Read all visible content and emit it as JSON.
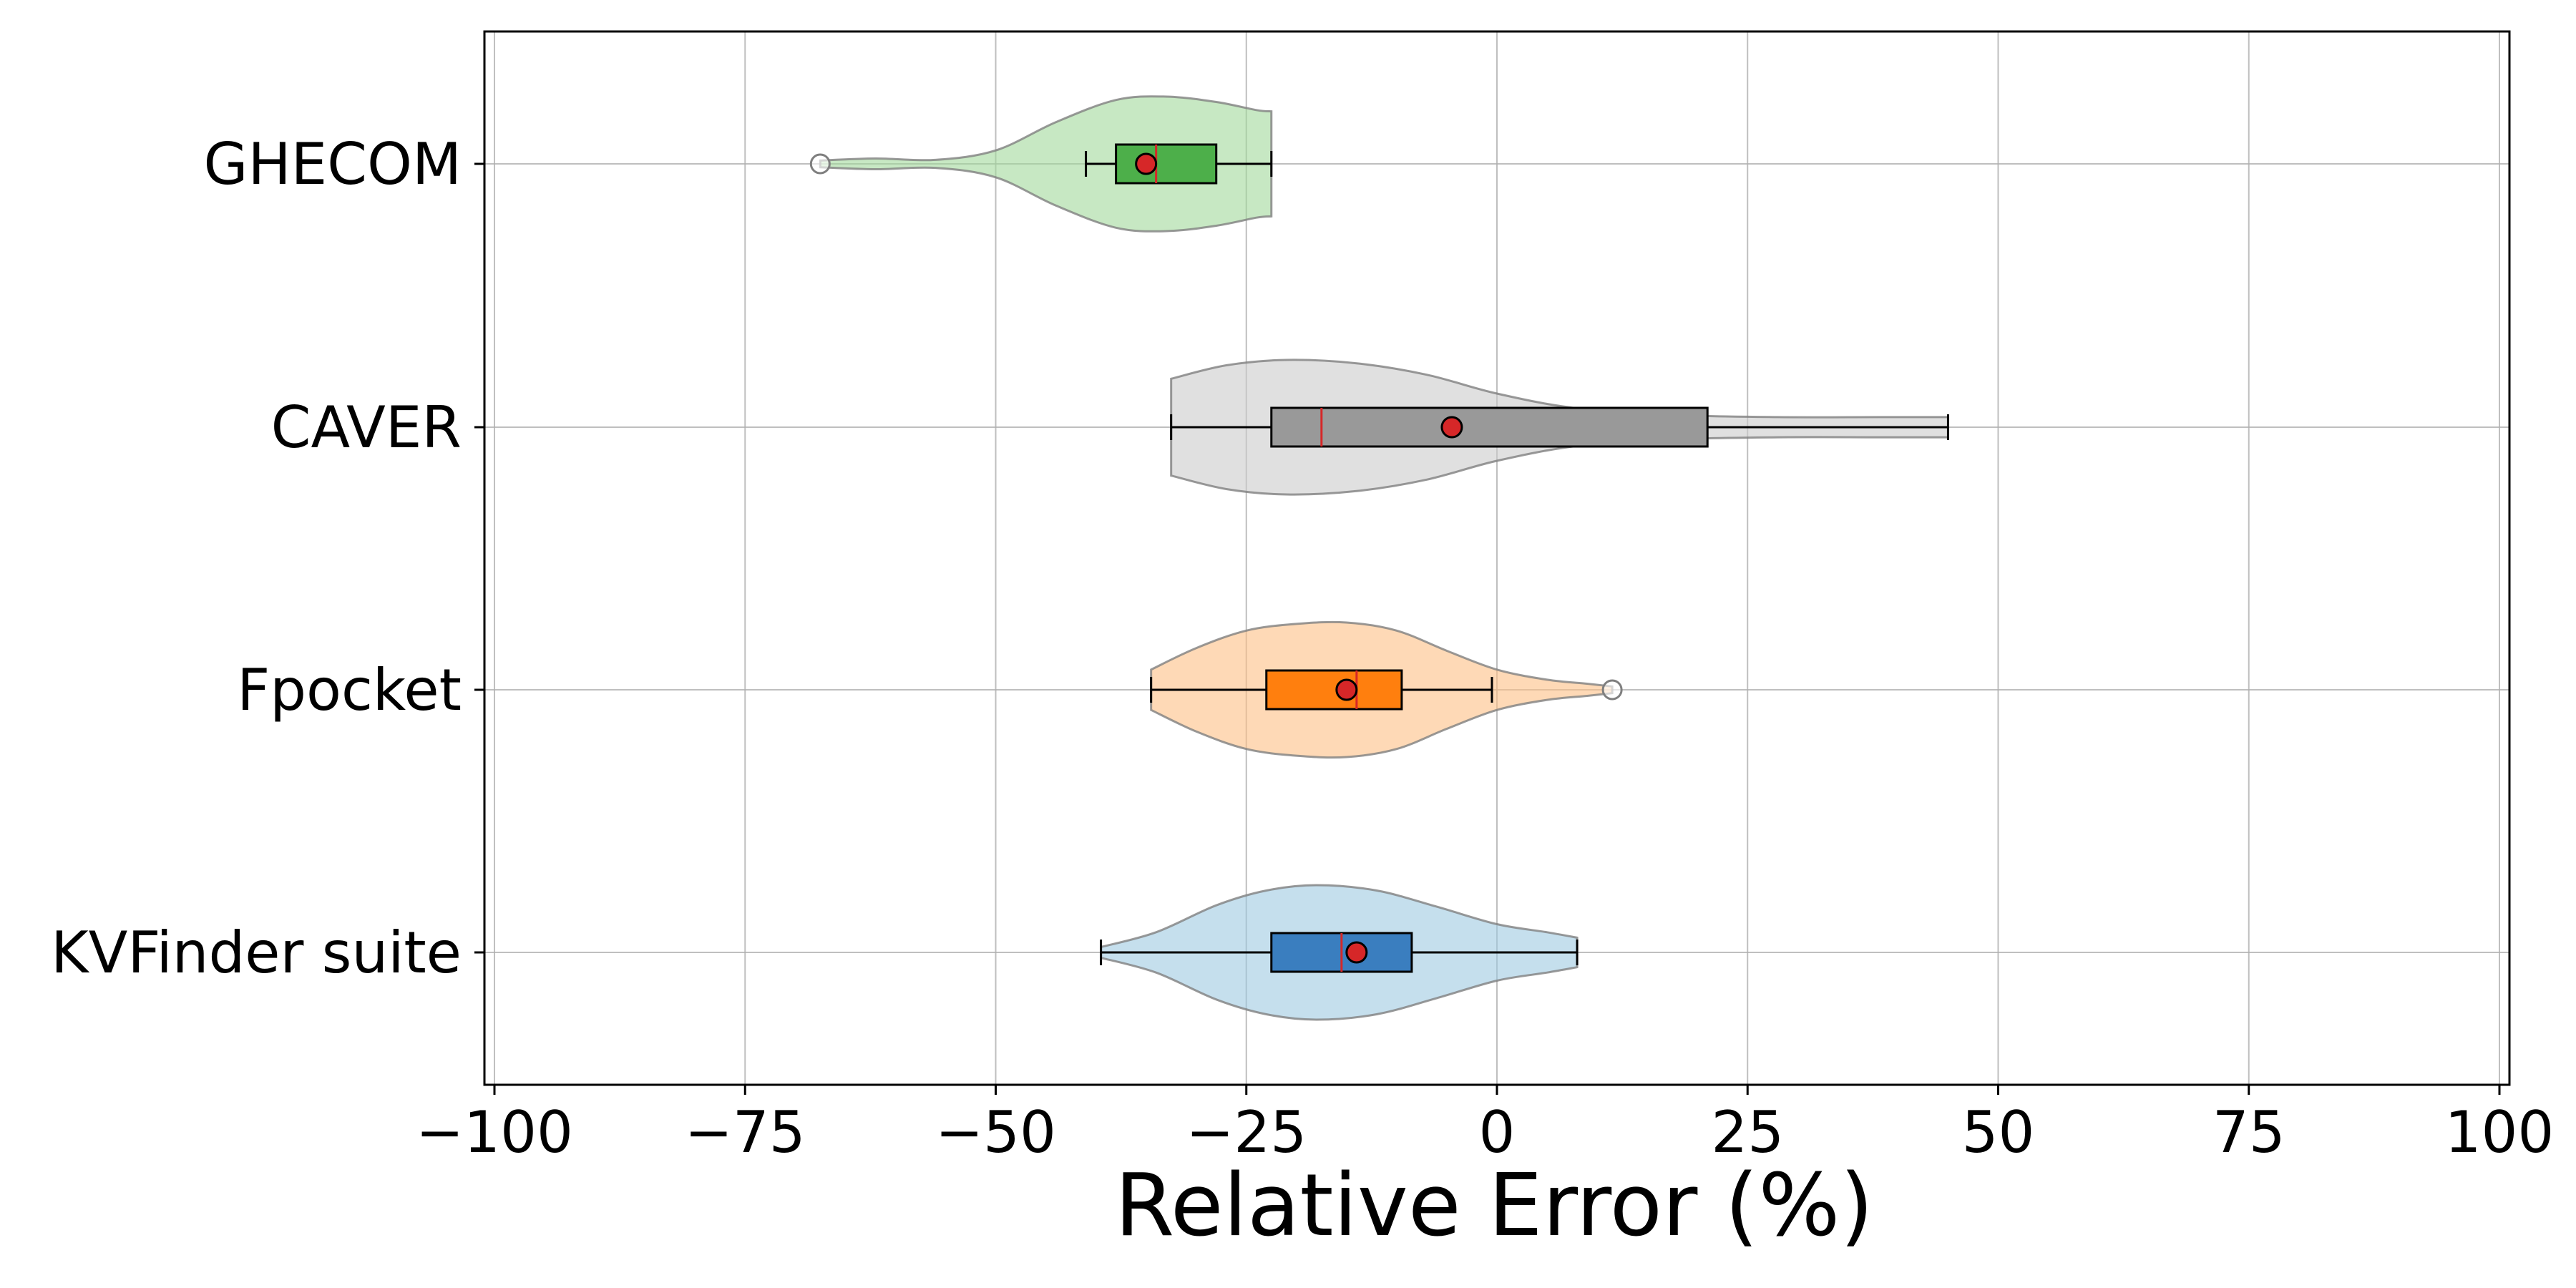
{
  "chart_data": {
    "type": "violin",
    "title": "",
    "xlabel": "Relative Error (%)",
    "ylabel": "",
    "xlim": [
      -101,
      101
    ],
    "xticks": [
      -100,
      -75,
      -50,
      -25,
      0,
      25,
      50,
      75,
      100
    ],
    "xtick_labels": [
      "−100",
      "−75",
      "−50",
      "−25",
      "0",
      "25",
      "50",
      "75",
      "100"
    ],
    "grid": true,
    "orientation": "horizontal",
    "mean_marker_color": "#d62728",
    "median_line_color": "#d62728",
    "categories": [
      "GHECOM",
      "CAVER",
      "Fpocket",
      "KVFinder suite"
    ],
    "series": [
      {
        "name": "GHECOM",
        "color": "#2ca02c",
        "box_color": "#4daf4a",
        "violin_color": "#a1d99b",
        "violin_min": -67.5,
        "violin_max": -22.5,
        "density": [
          [
            -67.5,
            0.05
          ],
          [
            -62,
            0.08
          ],
          [
            -56,
            0.06
          ],
          [
            -50,
            0.2
          ],
          [
            -44,
            0.62
          ],
          [
            -38,
            0.95
          ],
          [
            -33,
            1.0
          ],
          [
            -28,
            0.92
          ],
          [
            -24,
            0.8
          ],
          [
            -22.5,
            0.78
          ]
        ],
        "whisker_low": -41,
        "q1": -38,
        "median": -34,
        "q3": -28,
        "whisker_high": -22.5,
        "mean": -35,
        "outliers": [
          -67.5
        ]
      },
      {
        "name": "CAVER",
        "color": "#7f7f7f",
        "box_color": "#999999",
        "violin_color": "#cccccc",
        "violin_min": -32.5,
        "violin_max": 45,
        "density": [
          [
            -32.5,
            0.72
          ],
          [
            -27,
            0.92
          ],
          [
            -21,
            1.0
          ],
          [
            -14,
            0.95
          ],
          [
            -7,
            0.78
          ],
          [
            0,
            0.5
          ],
          [
            8,
            0.28
          ],
          [
            18,
            0.18
          ],
          [
            28,
            0.15
          ],
          [
            38,
            0.15
          ],
          [
            45,
            0.15
          ]
        ],
        "whisker_low": -32.5,
        "q1": -22.5,
        "median": -17.5,
        "q3": 21,
        "whisker_high": 45,
        "mean": -4.5,
        "outliers": []
      },
      {
        "name": "Fpocket",
        "color": "#ff7f0e",
        "box_color": "#ff7f0e",
        "violin_color": "#fdc086",
        "violin_min": -34.5,
        "violin_max": 11.5,
        "density": [
          [
            -34.5,
            0.3
          ],
          [
            -30,
            0.62
          ],
          [
            -25,
            0.88
          ],
          [
            -20,
            0.98
          ],
          [
            -15,
            1.0
          ],
          [
            -10,
            0.88
          ],
          [
            -5,
            0.58
          ],
          [
            0,
            0.3
          ],
          [
            5,
            0.15
          ],
          [
            9,
            0.09
          ],
          [
            11.5,
            0.05
          ]
        ],
        "whisker_low": -34.5,
        "q1": -23,
        "median": -14,
        "q3": -9.5,
        "whisker_high": -0.5,
        "mean": -15,
        "outliers": [
          11.5
        ]
      },
      {
        "name": "KVFinder suite",
        "color": "#1f77b4",
        "box_color": "#3a7ebf",
        "violin_color": "#9ecae1",
        "violin_min": -39.5,
        "violin_max": 8,
        "density": [
          [
            -39.5,
            0.08
          ],
          [
            -34,
            0.3
          ],
          [
            -28,
            0.7
          ],
          [
            -23,
            0.92
          ],
          [
            -18,
            1.0
          ],
          [
            -12,
            0.92
          ],
          [
            -6,
            0.68
          ],
          [
            0,
            0.42
          ],
          [
            5,
            0.3
          ],
          [
            8,
            0.22
          ]
        ],
        "whisker_low": -39.5,
        "q1": -22.5,
        "median": -15.5,
        "q3": -8.5,
        "whisker_high": 8,
        "mean": -14,
        "outliers": []
      }
    ]
  }
}
